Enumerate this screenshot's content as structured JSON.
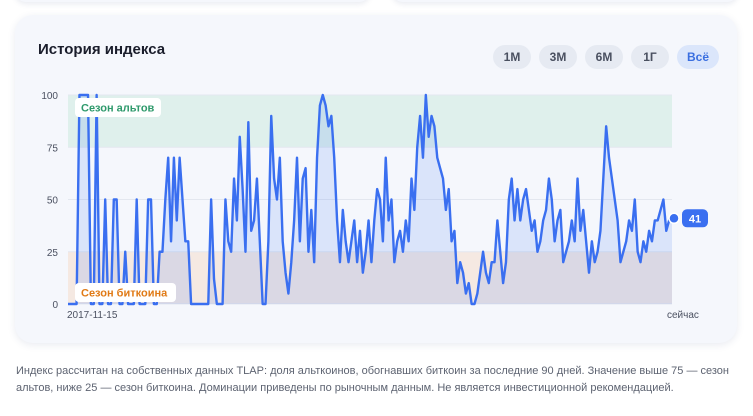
{
  "panel": {
    "title": "История индекса",
    "ranges": [
      {
        "label": "1М",
        "active": false
      },
      {
        "label": "3М",
        "active": false
      },
      {
        "label": "6М",
        "active": false
      },
      {
        "label": "1Г",
        "active": false
      },
      {
        "label": "Всё",
        "active": true
      }
    ]
  },
  "footnote": "Индекс рассчитан на собственных данных TLAP: доля альткоинов, обогнавших биткоин за последние 90 дней. Значение выше 75 — сезон альтов, ниже 25 — сезон биткоина. Доминации приведены по рыночным данным. Не является инвестиционной рекомендацией.",
  "colors": {
    "line": "#3a6ff0",
    "alt_zone": "#dff0ec",
    "btc_zone": "#f5e9e2",
    "alt_label": "#2f9a6c",
    "btc_label": "#e07a16"
  },
  "chart_data": {
    "type": "area",
    "ylim": [
      0,
      100
    ],
    "y_ticks": [
      "0",
      "25",
      "50",
      "75",
      "100"
    ],
    "x_tick_labels": [
      "2017-11-15",
      "сейчас"
    ],
    "zones": [
      {
        "label": "Сезон альтов",
        "from": 75,
        "to": 100
      },
      {
        "label": "Сезон биткоина",
        "from": 0,
        "to": 25
      }
    ],
    "current_value": "41",
    "values": [
      0,
      0,
      0,
      0,
      100,
      100,
      100,
      100,
      0,
      0,
      100,
      0,
      0,
      50,
      0,
      0,
      50,
      50,
      0,
      0,
      25,
      0,
      0,
      0,
      50,
      0,
      0,
      0,
      50,
      50,
      0,
      0,
      25,
      25,
      50,
      70,
      30,
      70,
      40,
      70,
      50,
      30,
      30,
      0,
      0,
      0,
      0,
      0,
      0,
      0,
      50,
      12,
      0,
      0,
      0,
      50,
      30,
      25,
      60,
      40,
      80,
      55,
      25,
      87,
      35,
      40,
      60,
      30,
      0,
      0,
      30,
      90,
      60,
      50,
      70,
      30,
      15,
      5,
      20,
      40,
      70,
      30,
      60,
      65,
      25,
      45,
      20,
      70,
      95,
      100,
      95,
      85,
      90,
      70,
      40,
      20,
      45,
      30,
      20,
      30,
      40,
      20,
      35,
      15,
      25,
      40,
      20,
      40,
      55,
      50,
      30,
      70,
      40,
      50,
      20,
      30,
      35,
      25,
      40,
      30,
      60,
      45,
      75,
      90,
      70,
      100,
      80,
      90,
      85,
      70,
      65,
      60,
      45,
      55,
      30,
      35,
      10,
      20,
      15,
      5,
      10,
      0,
      0,
      5,
      15,
      25,
      15,
      10,
      20,
      20,
      40,
      25,
      10,
      20,
      50,
      60,
      40,
      55,
      40,
      50,
      55,
      45,
      35,
      40,
      25,
      30,
      40,
      45,
      60,
      50,
      30,
      40,
      45,
      20,
      25,
      30,
      40,
      30,
      60,
      35,
      45,
      30,
      15,
      30,
      20,
      25,
      35,
      60,
      85,
      70,
      60,
      50,
      40,
      20,
      25,
      30,
      40,
      35,
      50,
      25,
      20,
      30,
      25,
      35,
      30,
      40,
      40,
      45,
      50,
      35,
      40,
      41
    ]
  }
}
